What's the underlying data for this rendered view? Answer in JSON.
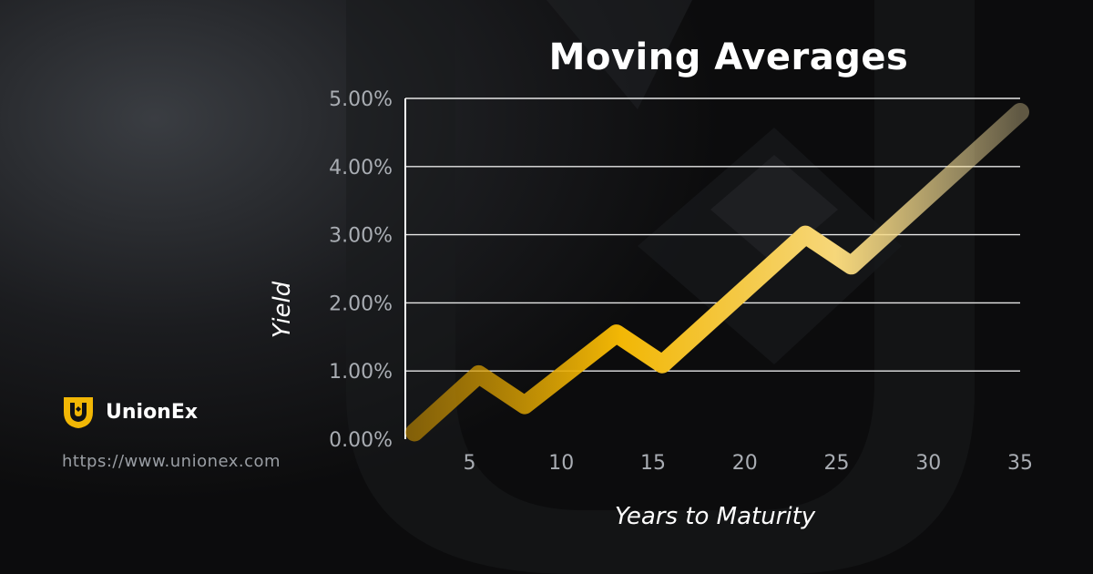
{
  "brand": {
    "name": "UnionEx",
    "url": "https://www.unionex.com",
    "accent_color": "#f2b705",
    "logo_icon": "unionex-shield-logo"
  },
  "chart_data": {
    "type": "line",
    "title": "Moving Averages",
    "xlabel": "Years to Maturity",
    "ylabel": "Yield",
    "x_ticks": [
      5,
      10,
      15,
      20,
      25,
      30,
      35
    ],
    "y_ticks": [
      "0.00%",
      "1.00%",
      "2.00%",
      "3.00%",
      "4.00%",
      "5.00%"
    ],
    "xlim": [
      1.5,
      35
    ],
    "ylim": [
      0,
      5
    ],
    "grid": "horizontal",
    "series": [
      {
        "color_start": "#f2b705",
        "color_end": "#fbe6a8",
        "points": [
          {
            "x": 2,
            "y": 0.1
          },
          {
            "x": 5.5,
            "y": 0.95
          },
          {
            "x": 8,
            "y": 0.5
          },
          {
            "x": 13,
            "y": 1.55
          },
          {
            "x": 15.5,
            "y": 1.1
          },
          {
            "x": 23.3,
            "y": 3.0
          },
          {
            "x": 25.8,
            "y": 2.55
          },
          {
            "x": 35,
            "y": 4.8
          }
        ]
      }
    ]
  }
}
